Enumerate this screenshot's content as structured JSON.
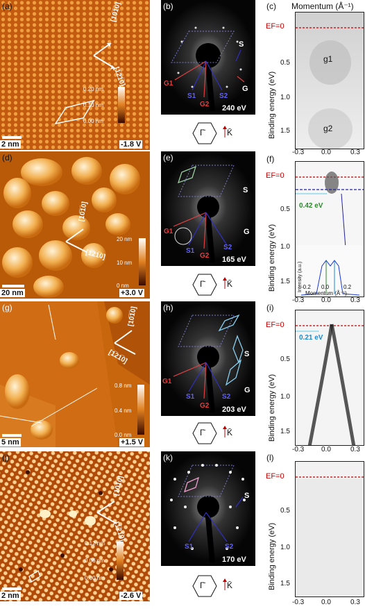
{
  "header": {
    "momentum_title": "Momentum (Å⁻¹)"
  },
  "rows": [
    {
      "stm": {
        "label": "(a)",
        "scale": "2 nm",
        "bias": "-1.8 V",
        "cbar": [
          "0.20 nm",
          "0.10 nm",
          "0.00 nm"
        ],
        "dir1": "[10̅1̅0]",
        "dir2": "[1̅21̅0]"
      },
      "leed": {
        "label": "(b)",
        "energy": "240 eV",
        "spots": [
          "S",
          "G1",
          "S1",
          "G2",
          "S2",
          "G"
        ]
      },
      "bz": {
        "gamma": "Γ̄",
        "k": "K̄"
      },
      "arpes": {
        "label": "(c)",
        "ef": "EF=0",
        "ylabel": "Binding energy (eV)",
        "yticks": [
          "0.5",
          "1.0",
          "1.5"
        ],
        "xticks": [
          "-0.3",
          "0.0",
          "0.3"
        ],
        "bands": [
          "g1",
          "g2"
        ]
      }
    },
    {
      "stm": {
        "label": "(d)",
        "scale": "20 nm",
        "bias": "+3.0 V",
        "cbar": [
          "20 nm",
          "10 nm",
          "0 nm"
        ],
        "dir1": "[10̅1̅0]",
        "dir2": "[1̅21̅0]"
      },
      "leed": {
        "label": "(e)",
        "energy": "165 eV",
        "spots": [
          "S",
          "G1",
          "S1",
          "G2",
          "S2",
          "G"
        ]
      },
      "bz": {
        "gamma": "Γ̄",
        "k": "K̄"
      },
      "arpes": {
        "label": "(f)",
        "ef": "EF=0",
        "gap": "0.42 eV",
        "ylabel": "Binding energy (eV)",
        "yticks": [
          "0.5",
          "1.0",
          "1.5"
        ],
        "xticks": [
          "-0.3",
          "0.0",
          "0.3"
        ],
        "inset_ylabel": "Intensity (a.u.)",
        "inset_xlabel": "Momentum (Å⁻¹)",
        "inset_xticks": [
          "-0.2",
          "0.0",
          "0.2"
        ]
      }
    },
    {
      "stm": {
        "label": "(g)",
        "scale": "5 nm",
        "bias": "+1.5 V",
        "cbar": [
          "0.8 nm",
          "0.4 nm",
          "0.0 nm"
        ],
        "dir1": "[10̅1̅0]",
        "dir2": "[1̅21̅0]"
      },
      "leed": {
        "label": "(h)",
        "energy": "203 eV",
        "spots": [
          "S",
          "G1",
          "S1",
          "G2",
          "S2",
          "G"
        ]
      },
      "bz": {
        "gamma": "Γ̄",
        "k": "K̄"
      },
      "arpes": {
        "label": "(i)",
        "ef": "EF=0",
        "gap": "0.21 eV",
        "ylabel": "Binding energy (eV)",
        "yticks": [
          "0.5",
          "1.0",
          "1.5"
        ],
        "xticks": [
          "-0.3",
          "0.0",
          "0.3"
        ]
      }
    },
    {
      "stm": {
        "label": "(j)",
        "scale": "2 nm",
        "bias": "-2.6 V",
        "cbar": [
          "0.12 nm",
          "0.06 nm",
          "0.00 nm"
        ],
        "dir1": "[10̅1̅0]",
        "dir2": "[1̅21̅0]"
      },
      "leed": {
        "label": "(k)",
        "energy": "170 eV",
        "spots": [
          "S",
          "S1",
          "S2"
        ]
      },
      "bz": {
        "gamma": "Γ̄",
        "k": "K̄"
      },
      "arpes": {
        "label": "(l)",
        "ef": "EF=0",
        "ylabel": "Binding energy (eV)",
        "yticks": [
          "0.5",
          "1.0",
          "1.5"
        ],
        "xticks": [
          "-0.3",
          "0.0",
          "0.3"
        ]
      }
    }
  ],
  "colors": {
    "stm_dark": "#7a2a00",
    "stm_mid": "#d06000",
    "stm_light": "#ffd9a0",
    "fermi_line": "#c00000",
    "gap_green": "#2a8a2a",
    "gap_blue": "#1a8ad0",
    "spot_red": "#e04040",
    "spot_blue": "#3030c0"
  }
}
